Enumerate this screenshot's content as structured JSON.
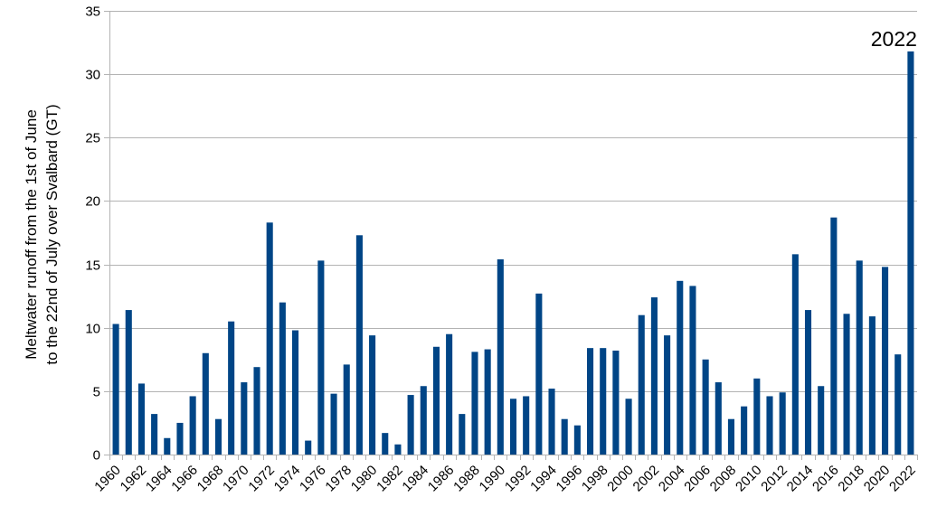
{
  "chart_data": {
    "type": "bar",
    "title": "",
    "ylabel_lines": [
      "Meltwater runoff from the 1st of June",
      "to the 22nd of July over Svalbard (GT)"
    ],
    "xlabel": "",
    "ylim": [
      0,
      35
    ],
    "yticks": [
      0,
      5,
      10,
      15,
      20,
      25,
      30,
      35
    ],
    "grid": "horizontal",
    "bar_color": "#004586",
    "categories": [
      1960,
      1961,
      1962,
      1963,
      1964,
      1965,
      1966,
      1967,
      1968,
      1969,
      1970,
      1971,
      1972,
      1973,
      1974,
      1975,
      1976,
      1977,
      1978,
      1979,
      1980,
      1981,
      1982,
      1983,
      1984,
      1985,
      1986,
      1987,
      1988,
      1989,
      1990,
      1991,
      1992,
      1993,
      1994,
      1995,
      1996,
      1997,
      1998,
      1999,
      2000,
      2001,
      2002,
      2003,
      2004,
      2005,
      2006,
      2007,
      2008,
      2009,
      2010,
      2011,
      2012,
      2013,
      2014,
      2015,
      2016,
      2017,
      2018,
      2019,
      2020,
      2021,
      2022
    ],
    "x_tick_labels": [
      "1960",
      "1962",
      "1964",
      "1966",
      "1968",
      "1970",
      "1972",
      "1974",
      "1976",
      "1978",
      "1980",
      "1982",
      "1984",
      "1986",
      "1988",
      "1990",
      "1992",
      "1994",
      "1996",
      "1998",
      "2000",
      "2002",
      "2004",
      "2006",
      "2008",
      "2010",
      "2012",
      "2014",
      "2016",
      "2018",
      "2020",
      "2022"
    ],
    "values": [
      10.3,
      11.4,
      5.6,
      3.2,
      1.3,
      2.5,
      4.6,
      8.0,
      2.8,
      10.5,
      5.7,
      6.9,
      18.3,
      12.0,
      9.8,
      1.1,
      15.3,
      4.8,
      7.1,
      17.3,
      9.4,
      1.7,
      0.8,
      4.7,
      5.4,
      8.5,
      9.5,
      3.2,
      8.1,
      8.3,
      15.4,
      4.4,
      4.6,
      12.7,
      5.2,
      2.8,
      2.3,
      8.4,
      8.4,
      8.2,
      4.4,
      11.0,
      12.4,
      9.4,
      13.7,
      13.3,
      7.5,
      5.7,
      2.8,
      3.8,
      6.0,
      4.6,
      4.9,
      15.8,
      11.4,
      5.4,
      18.7,
      11.1,
      15.3,
      10.9,
      14.8,
      7.9,
      31.8
    ],
    "annotation": "2022"
  }
}
